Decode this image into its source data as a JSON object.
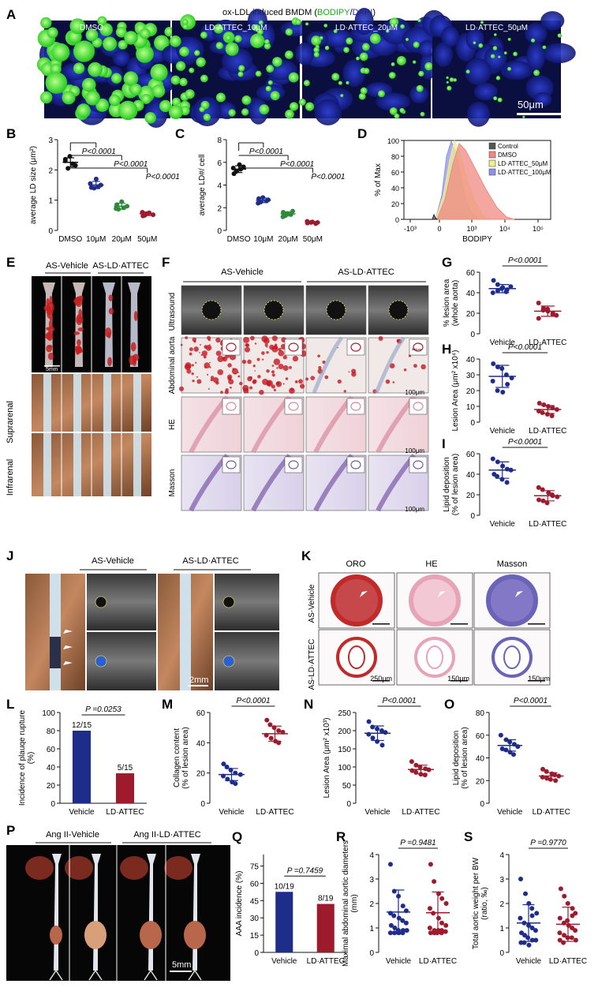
{
  "colors": {
    "blue": "#1f2d8a",
    "red": "#9e1b2e",
    "green": "#3ad13a",
    "nucleus": "#1c2ba8",
    "control": "#555555",
    "dmso": "#f08a80",
    "c50": "#f0ee90",
    "c100": "#8f93e8"
  },
  "panelA": {
    "letter": "A",
    "title_main": "ox-LDL induced BMDM (",
    "title_bodipy": "BODIPY",
    "title_sep": "/",
    "title_dapi": "DAPI",
    "title_end": ")",
    "images": [
      "DMSO",
      "LD·ATTEC_10μM",
      "LD·ATTEC_20μM",
      "LD·ATTEC_50μM"
    ],
    "scalebar": "50μm"
  },
  "panelE": {
    "letter": "E",
    "groups": [
      "AS-Vehicle",
      "AS-LD·ATTEC"
    ],
    "rows": [
      "Suprarenal",
      "Infrarenal"
    ],
    "scalebar": "5mm"
  },
  "panelF": {
    "letter": "F",
    "groups": [
      "AS-Vehicle",
      "AS-LD·ATTEC"
    ],
    "rows": [
      "Ultrasound",
      "Abdominal aorta",
      "HE",
      "Masson"
    ],
    "scalebar": "100μm",
    "inset_scale": "500μm"
  },
  "panelJ": {
    "letter": "J",
    "groups": [
      "AS-Vehicle",
      "AS-LD·ATTEC"
    ],
    "scalebar": "2mm"
  },
  "panelK": {
    "letter": "K",
    "columns": [
      "ORO",
      "HE",
      "Masson"
    ],
    "rows": [
      "AS-Vehicle",
      "AS-LD·ATTEC"
    ],
    "scalebars": [
      "250μm",
      "150μm",
      "150μm"
    ]
  },
  "panelP": {
    "letter": "P",
    "groups": [
      "Ang II-Vehicle",
      "Ang II-LD·ATTEC"
    ],
    "scalebar": "5mm"
  },
  "chart_data": [
    {
      "id": "B",
      "letter": "B",
      "type": "scatter",
      "ylabel": "average LD size (μm²)",
      "ylim": [
        0,
        3
      ],
      "yticks": [
        0,
        1,
        2,
        3
      ],
      "categories": [
        "DMSO",
        "10μM",
        "20μM",
        "50μM"
      ],
      "points": [
        [
          2.3,
          2.05,
          2.45,
          2.2,
          2.15,
          2.35
        ],
        [
          1.55,
          1.4,
          1.7,
          1.45,
          1.5,
          1.42
        ],
        [
          0.85,
          0.7,
          0.95,
          0.75,
          0.8,
          0.72
        ],
        [
          0.6,
          0.5,
          0.55,
          0.58,
          0.52,
          0.48
        ]
      ],
      "mean": [
        2.25,
        1.5,
        0.8,
        0.55
      ],
      "sd": [
        0.15,
        0.12,
        0.1,
        0.06
      ],
      "pvalues": [
        "P<0.0001",
        "P<0.0001",
        "P<0.0001"
      ]
    },
    {
      "id": "C",
      "letter": "C",
      "type": "scatter",
      "ylabel": "average LD#/ cell",
      "ylim": [
        0,
        8
      ],
      "yticks": [
        0,
        2,
        4,
        6,
        8
      ],
      "categories": [
        "DMSO",
        "10μM",
        "20μM",
        "50μM"
      ],
      "points": [
        [
          5.5,
          5.2,
          5.8,
          5.4,
          5.6,
          5.0
        ],
        [
          2.8,
          2.5,
          2.9,
          2.6,
          2.7,
          2.4
        ],
        [
          1.6,
          1.3,
          1.5,
          1.4,
          1.7,
          1.2
        ],
        [
          0.8,
          0.7,
          0.75,
          0.6,
          0.7,
          0.65
        ]
      ],
      "mean": [
        5.4,
        2.65,
        1.45,
        0.7
      ],
      "sd": [
        0.3,
        0.2,
        0.18,
        0.08
      ],
      "pvalues": [
        "P<0.0001",
        "P<0.0001",
        "P<0.0001"
      ]
    },
    {
      "id": "D",
      "letter": "D",
      "type": "area",
      "ylabel": "% of Max",
      "xlabel": "BODIPY",
      "ylim": [
        0,
        100
      ],
      "yticks": [
        0,
        20,
        40,
        60,
        80,
        100
      ],
      "xticks": [
        "-10³",
        "0",
        "10³",
        "10⁴",
        "10⁵"
      ],
      "legend": [
        "Control",
        "DMSO",
        "LD·ATTEC_50μM",
        "LD·ATTEC_100μM"
      ],
      "legend_position": "top-right"
    },
    {
      "id": "G",
      "letter": "G",
      "type": "scatter",
      "ylabel": "% lesion area (whole aorta)",
      "ylim": [
        0,
        60
      ],
      "yticks": [
        0,
        20,
        40,
        60
      ],
      "categories": [
        "Vehicle",
        "LD·ATTEC"
      ],
      "points": [
        [
          52,
          48,
          45,
          43,
          46,
          40,
          42,
          44,
          41
        ],
        [
          30,
          25,
          22,
          20,
          18,
          15,
          23,
          24,
          19
        ]
      ],
      "mean": [
        44,
        22
      ],
      "sd": [
        4,
        5
      ],
      "pvalues": [
        "P<0.0001"
      ]
    },
    {
      "id": "H",
      "letter": "H",
      "type": "scatter",
      "ylabel": "Lesion Area (μm² x10⁴)",
      "ylim": [
        0,
        40
      ],
      "yticks": [
        0,
        10,
        20,
        30,
        40
      ],
      "categories": [
        "Vehicle",
        "LD·ATTEC"
      ],
      "points": [
        [
          37,
          35,
          34,
          30,
          28,
          26,
          20,
          19,
          24
        ],
        [
          12,
          11,
          10,
          9,
          8,
          7,
          6,
          5,
          4
        ]
      ],
      "mean": [
        29,
        8
      ],
      "sd": [
        7,
        2.5
      ],
      "pvalues": [
        "P<0.0001"
      ]
    },
    {
      "id": "I",
      "letter": "I",
      "type": "scatter",
      "ylabel": "Lipid deposition (% of lesion area)",
      "ylim": [
        0,
        60
      ],
      "yticks": [
        0,
        20,
        40,
        60
      ],
      "categories": [
        "Vehicle",
        "LD·ATTEC"
      ],
      "points": [
        [
          55,
          52,
          48,
          45,
          44,
          40,
          38,
          35,
          32
        ],
        [
          27,
          25,
          22,
          20,
          18,
          15,
          14,
          12,
          19
        ]
      ],
      "mean": [
        44,
        19
      ],
      "sd": [
        8,
        5
      ],
      "pvalues": [
        "P<0.0001"
      ]
    },
    {
      "id": "L",
      "letter": "L",
      "type": "bar",
      "ylabel": "Incidence of plauqe rupture (%)",
      "ylim": [
        0,
        100
      ],
      "yticks": [
        0,
        20,
        40,
        60,
        80,
        100
      ],
      "categories": [
        "Vehicle",
        "LD·ATTEC"
      ],
      "values": [
        80,
        33
      ],
      "bar_labels": [
        "12/15",
        "5/15"
      ],
      "pvalues": [
        "P =0.0253"
      ]
    },
    {
      "id": "M",
      "letter": "M",
      "type": "scatter",
      "ylabel": "Collagen content (% of lesion area)",
      "ylim": [
        0,
        60
      ],
      "yticks": [
        0,
        20,
        40,
        60
      ],
      "categories": [
        "Vehicle",
        "LD·ATTEC"
      ],
      "points": [
        [
          26,
          24,
          22,
          20,
          19,
          18,
          16,
          14,
          13
        ],
        [
          55,
          52,
          50,
          48,
          47,
          45,
          43,
          41,
          40
        ]
      ],
      "mean": [
        19,
        46
      ],
      "sd": [
        4,
        5
      ],
      "pvalues": [
        "P<0.0001"
      ]
    },
    {
      "id": "N",
      "letter": "N",
      "type": "scatter",
      "ylabel": "Lesion Area (μm² x10³)",
      "ylim": [
        0,
        250
      ],
      "yticks": [
        0,
        50,
        100,
        150,
        200,
        250
      ],
      "categories": [
        "Vehicle",
        "LD·ATTEC"
      ],
      "points": [
        [
          225,
          210,
          205,
          200,
          195,
          190,
          180,
          170,
          160
        ],
        [
          115,
          105,
          100,
          95,
          92,
          90,
          85,
          80,
          78
        ]
      ],
      "mean": [
        193,
        93
      ],
      "sd": [
        20,
        12
      ],
      "pvalues": [
        "P<0.0001"
      ]
    },
    {
      "id": "O",
      "letter": "O",
      "type": "scatter",
      "ylabel": "Lipid deposition (% of lesion area)",
      "ylim": [
        0,
        80
      ],
      "yticks": [
        0,
        20,
        40,
        60,
        80
      ],
      "categories": [
        "Vehicle",
        "LD·ATTEC"
      ],
      "points": [
        [
          60,
          56,
          54,
          52,
          50,
          48,
          47,
          45,
          43
        ],
        [
          30,
          28,
          26,
          25,
          24,
          23,
          22,
          21,
          20
        ]
      ],
      "mean": [
        51,
        24
      ],
      "sd": [
        5,
        3
      ],
      "pvalues": [
        "P<0.0001"
      ]
    },
    {
      "id": "Q",
      "letter": "Q",
      "type": "bar",
      "ylabel": "AAA incidence (%)",
      "ylim": [
        0,
        85
      ],
      "yticks": [
        0,
        15,
        30,
        45,
        60,
        75
      ],
      "categories": [
        "Vehicle",
        "LD·ATTEC"
      ],
      "values": [
        52.6,
        42.1
      ],
      "bar_labels": [
        "10/19",
        "8/19"
      ],
      "pvalues": [
        "P =0.7459"
      ]
    },
    {
      "id": "R",
      "letter": "R",
      "type": "scatter",
      "ylabel": "Maximal abdominal aortic diameters (mm)",
      "ylim": [
        0,
        4
      ],
      "yticks": [
        0,
        1,
        2,
        3,
        4
      ],
      "categories": [
        "Vehicle",
        "LD·ATTEC"
      ],
      "points": [
        [
          3.6,
          2.5,
          2.3,
          1.9,
          1.7,
          1.6,
          1.5,
          1.4,
          1.3,
          1.2,
          1.1,
          1.0,
          0.9,
          0.9,
          0.9,
          0.8,
          0.8,
          0.8,
          0.8
        ],
        [
          3.6,
          2.9,
          2.4,
          2.2,
          2.0,
          1.8,
          1.6,
          1.4,
          1.2,
          1.1,
          1.0,
          0.9,
          0.9,
          0.9,
          0.85,
          0.8,
          0.8,
          0.8,
          0.8
        ]
      ],
      "mean": [
        1.65,
        1.62
      ],
      "sd": [
        0.9,
        0.85
      ],
      "pvalues": [
        "P =0.9481"
      ]
    },
    {
      "id": "S",
      "letter": "S",
      "type": "scatter",
      "ylabel": "Total aortic weight per BW (ratio, ‰)",
      "ylim": [
        0,
        4
      ],
      "yticks": [
        0,
        1,
        2,
        3,
        4
      ],
      "categories": [
        "Vehicle",
        "LD·ATTEC"
      ],
      "points": [
        [
          3.0,
          2.4,
          2.0,
          1.8,
          1.6,
          1.4,
          1.2,
          1.1,
          1.0,
          0.9,
          0.8,
          0.7,
          0.6,
          0.5,
          0.5,
          0.4,
          0.4,
          0.3,
          1.5
        ],
        [
          2.6,
          2.3,
          2.0,
          1.8,
          1.6,
          1.4,
          1.2,
          1.1,
          1.0,
          0.9,
          0.8,
          0.7,
          0.6,
          0.6,
          0.5,
          0.5,
          0.4,
          1.3,
          1.5
        ]
      ],
      "mean": [
        1.2,
        1.15
      ],
      "sd": [
        0.75,
        0.7
      ],
      "pvalues": [
        "P =0.9770"
      ]
    }
  ]
}
